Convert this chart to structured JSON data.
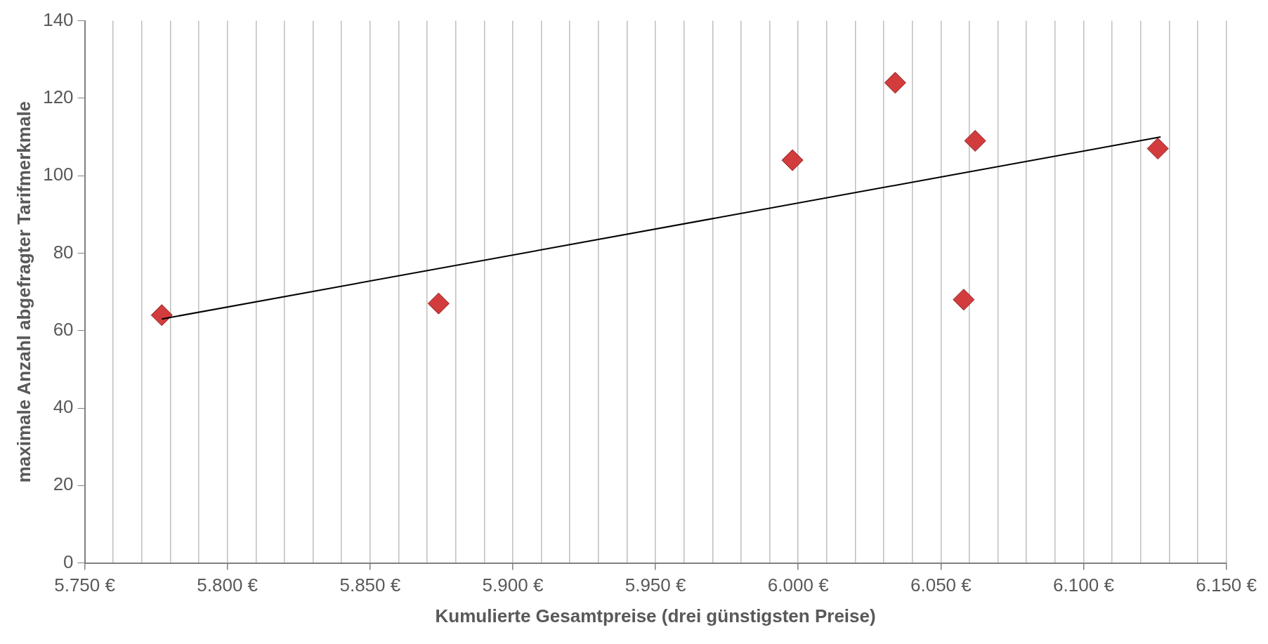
{
  "chart_data": {
    "type": "scatter",
    "xlabel": "Kumulierte Gesamtpreise (drei günstigsten Preise)",
    "ylabel": "maximale Anzahl abgefragter Tarifmerkmale",
    "xlim": [
      5750,
      6150
    ],
    "ylim": [
      0,
      140
    ],
    "xticks": [
      {
        "value": 5750,
        "label": "5.750 €"
      },
      {
        "value": 5760,
        "label": null
      },
      {
        "value": 5770,
        "label": null
      },
      {
        "value": 5780,
        "label": null
      },
      {
        "value": 5790,
        "label": null
      },
      {
        "value": 5800,
        "label": "5.800 €"
      },
      {
        "value": 5810,
        "label": null
      },
      {
        "value": 5820,
        "label": null
      },
      {
        "value": 5830,
        "label": null
      },
      {
        "value": 5840,
        "label": null
      },
      {
        "value": 5850,
        "label": "5.850 €"
      },
      {
        "value": 5860,
        "label": null
      },
      {
        "value": 5870,
        "label": null
      },
      {
        "value": 5880,
        "label": null
      },
      {
        "value": 5890,
        "label": null
      },
      {
        "value": 5900,
        "label": "5.900 €"
      },
      {
        "value": 5910,
        "label": null
      },
      {
        "value": 5920,
        "label": null
      },
      {
        "value": 5930,
        "label": null
      },
      {
        "value": 5940,
        "label": null
      },
      {
        "value": 5950,
        "label": "5.950 €"
      },
      {
        "value": 5960,
        "label": null
      },
      {
        "value": 5970,
        "label": null
      },
      {
        "value": 5980,
        "label": null
      },
      {
        "value": 5990,
        "label": null
      },
      {
        "value": 6000,
        "label": "6.000 €"
      },
      {
        "value": 6010,
        "label": null
      },
      {
        "value": 6020,
        "label": null
      },
      {
        "value": 6030,
        "label": null
      },
      {
        "value": 6040,
        "label": null
      },
      {
        "value": 6050,
        "label": "6.050 €"
      },
      {
        "value": 6060,
        "label": null
      },
      {
        "value": 6070,
        "label": null
      },
      {
        "value": 6080,
        "label": null
      },
      {
        "value": 6090,
        "label": null
      },
      {
        "value": 6100,
        "label": "6.100 €"
      },
      {
        "value": 6110,
        "label": null
      },
      {
        "value": 6120,
        "label": null
      },
      {
        "value": 6130,
        "label": null
      },
      {
        "value": 6140,
        "label": null
      },
      {
        "value": 6150,
        "label": "6.150 €"
      }
    ],
    "yticks": [
      0,
      20,
      40,
      60,
      80,
      100,
      120,
      140
    ],
    "grid": "x",
    "series": [
      {
        "marker": "diamond",
        "color": "#d23c3c",
        "x": [
          5777,
          5874,
          5998,
          6034,
          6058,
          6062,
          6126
        ],
        "values": [
          64,
          67,
          104,
          124,
          68,
          109,
          107
        ]
      },
      {
        "type": "line",
        "color": "#000000",
        "x": [
          5777,
          6127
        ],
        "values": [
          63,
          110
        ]
      }
    ]
  }
}
